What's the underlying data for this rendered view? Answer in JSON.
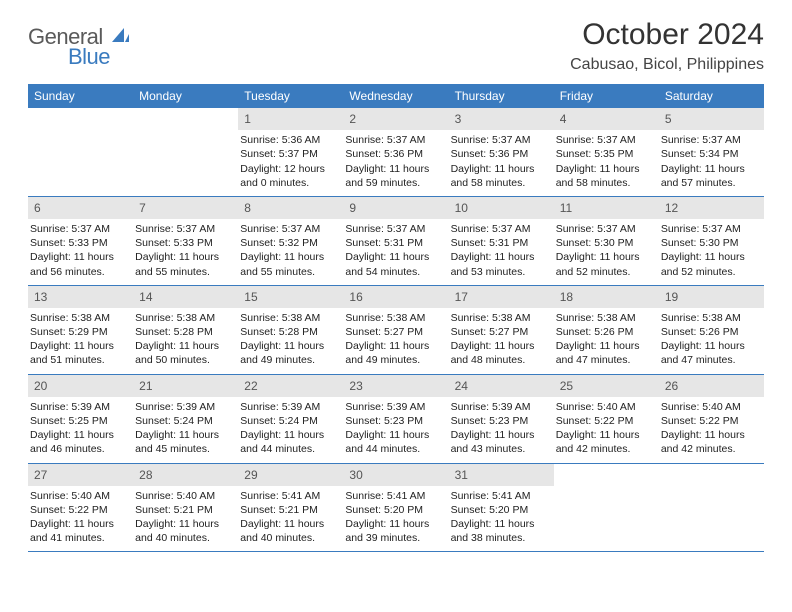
{
  "logo": {
    "word1": "General",
    "word2": "Blue",
    "icon_color": "#3a7bbf",
    "text_gray": "#5a5a5a"
  },
  "header": {
    "title": "October 2024",
    "location": "Cabusao, Bicol, Philippines"
  },
  "styling": {
    "header_bar_color": "#3a7bbf",
    "daynum_bg": "#e6e6e6",
    "row_border_color": "#3a7bbf",
    "page_bg": "#ffffff",
    "body_font_size": 10.5,
    "weekday_font_size": 12,
    "title_font_size": 30,
    "location_font_size": 16
  },
  "weekdays": [
    "Sunday",
    "Monday",
    "Tuesday",
    "Wednesday",
    "Thursday",
    "Friday",
    "Saturday"
  ],
  "weeks": [
    [
      {
        "empty": true,
        "day": "",
        "sunrise": "",
        "sunset": "",
        "daylight": ""
      },
      {
        "empty": true,
        "day": "",
        "sunrise": "",
        "sunset": "",
        "daylight": ""
      },
      {
        "day": "1",
        "sunrise": "Sunrise: 5:36 AM",
        "sunset": "Sunset: 5:37 PM",
        "daylight": "Daylight: 12 hours and 0 minutes."
      },
      {
        "day": "2",
        "sunrise": "Sunrise: 5:37 AM",
        "sunset": "Sunset: 5:36 PM",
        "daylight": "Daylight: 11 hours and 59 minutes."
      },
      {
        "day": "3",
        "sunrise": "Sunrise: 5:37 AM",
        "sunset": "Sunset: 5:36 PM",
        "daylight": "Daylight: 11 hours and 58 minutes."
      },
      {
        "day": "4",
        "sunrise": "Sunrise: 5:37 AM",
        "sunset": "Sunset: 5:35 PM",
        "daylight": "Daylight: 11 hours and 58 minutes."
      },
      {
        "day": "5",
        "sunrise": "Sunrise: 5:37 AM",
        "sunset": "Sunset: 5:34 PM",
        "daylight": "Daylight: 11 hours and 57 minutes."
      }
    ],
    [
      {
        "day": "6",
        "sunrise": "Sunrise: 5:37 AM",
        "sunset": "Sunset: 5:33 PM",
        "daylight": "Daylight: 11 hours and 56 minutes."
      },
      {
        "day": "7",
        "sunrise": "Sunrise: 5:37 AM",
        "sunset": "Sunset: 5:33 PM",
        "daylight": "Daylight: 11 hours and 55 minutes."
      },
      {
        "day": "8",
        "sunrise": "Sunrise: 5:37 AM",
        "sunset": "Sunset: 5:32 PM",
        "daylight": "Daylight: 11 hours and 55 minutes."
      },
      {
        "day": "9",
        "sunrise": "Sunrise: 5:37 AM",
        "sunset": "Sunset: 5:31 PM",
        "daylight": "Daylight: 11 hours and 54 minutes."
      },
      {
        "day": "10",
        "sunrise": "Sunrise: 5:37 AM",
        "sunset": "Sunset: 5:31 PM",
        "daylight": "Daylight: 11 hours and 53 minutes."
      },
      {
        "day": "11",
        "sunrise": "Sunrise: 5:37 AM",
        "sunset": "Sunset: 5:30 PM",
        "daylight": "Daylight: 11 hours and 52 minutes."
      },
      {
        "day": "12",
        "sunrise": "Sunrise: 5:37 AM",
        "sunset": "Sunset: 5:30 PM",
        "daylight": "Daylight: 11 hours and 52 minutes."
      }
    ],
    [
      {
        "day": "13",
        "sunrise": "Sunrise: 5:38 AM",
        "sunset": "Sunset: 5:29 PM",
        "daylight": "Daylight: 11 hours and 51 minutes."
      },
      {
        "day": "14",
        "sunrise": "Sunrise: 5:38 AM",
        "sunset": "Sunset: 5:28 PM",
        "daylight": "Daylight: 11 hours and 50 minutes."
      },
      {
        "day": "15",
        "sunrise": "Sunrise: 5:38 AM",
        "sunset": "Sunset: 5:28 PM",
        "daylight": "Daylight: 11 hours and 49 minutes."
      },
      {
        "day": "16",
        "sunrise": "Sunrise: 5:38 AM",
        "sunset": "Sunset: 5:27 PM",
        "daylight": "Daylight: 11 hours and 49 minutes."
      },
      {
        "day": "17",
        "sunrise": "Sunrise: 5:38 AM",
        "sunset": "Sunset: 5:27 PM",
        "daylight": "Daylight: 11 hours and 48 minutes."
      },
      {
        "day": "18",
        "sunrise": "Sunrise: 5:38 AM",
        "sunset": "Sunset: 5:26 PM",
        "daylight": "Daylight: 11 hours and 47 minutes."
      },
      {
        "day": "19",
        "sunrise": "Sunrise: 5:38 AM",
        "sunset": "Sunset: 5:26 PM",
        "daylight": "Daylight: 11 hours and 47 minutes."
      }
    ],
    [
      {
        "day": "20",
        "sunrise": "Sunrise: 5:39 AM",
        "sunset": "Sunset: 5:25 PM",
        "daylight": "Daylight: 11 hours and 46 minutes."
      },
      {
        "day": "21",
        "sunrise": "Sunrise: 5:39 AM",
        "sunset": "Sunset: 5:24 PM",
        "daylight": "Daylight: 11 hours and 45 minutes."
      },
      {
        "day": "22",
        "sunrise": "Sunrise: 5:39 AM",
        "sunset": "Sunset: 5:24 PM",
        "daylight": "Daylight: 11 hours and 44 minutes."
      },
      {
        "day": "23",
        "sunrise": "Sunrise: 5:39 AM",
        "sunset": "Sunset: 5:23 PM",
        "daylight": "Daylight: 11 hours and 44 minutes."
      },
      {
        "day": "24",
        "sunrise": "Sunrise: 5:39 AM",
        "sunset": "Sunset: 5:23 PM",
        "daylight": "Daylight: 11 hours and 43 minutes."
      },
      {
        "day": "25",
        "sunrise": "Sunrise: 5:40 AM",
        "sunset": "Sunset: 5:22 PM",
        "daylight": "Daylight: 11 hours and 42 minutes."
      },
      {
        "day": "26",
        "sunrise": "Sunrise: 5:40 AM",
        "sunset": "Sunset: 5:22 PM",
        "daylight": "Daylight: 11 hours and 42 minutes."
      }
    ],
    [
      {
        "day": "27",
        "sunrise": "Sunrise: 5:40 AM",
        "sunset": "Sunset: 5:22 PM",
        "daylight": "Daylight: 11 hours and 41 minutes."
      },
      {
        "day": "28",
        "sunrise": "Sunrise: 5:40 AM",
        "sunset": "Sunset: 5:21 PM",
        "daylight": "Daylight: 11 hours and 40 minutes."
      },
      {
        "day": "29",
        "sunrise": "Sunrise: 5:41 AM",
        "sunset": "Sunset: 5:21 PM",
        "daylight": "Daylight: 11 hours and 40 minutes."
      },
      {
        "day": "30",
        "sunrise": "Sunrise: 5:41 AM",
        "sunset": "Sunset: 5:20 PM",
        "daylight": "Daylight: 11 hours and 39 minutes."
      },
      {
        "day": "31",
        "sunrise": "Sunrise: 5:41 AM",
        "sunset": "Sunset: 5:20 PM",
        "daylight": "Daylight: 11 hours and 38 minutes."
      },
      {
        "empty": true,
        "day": "",
        "sunrise": "",
        "sunset": "",
        "daylight": ""
      },
      {
        "empty": true,
        "day": "",
        "sunrise": "",
        "sunset": "",
        "daylight": ""
      }
    ]
  ]
}
